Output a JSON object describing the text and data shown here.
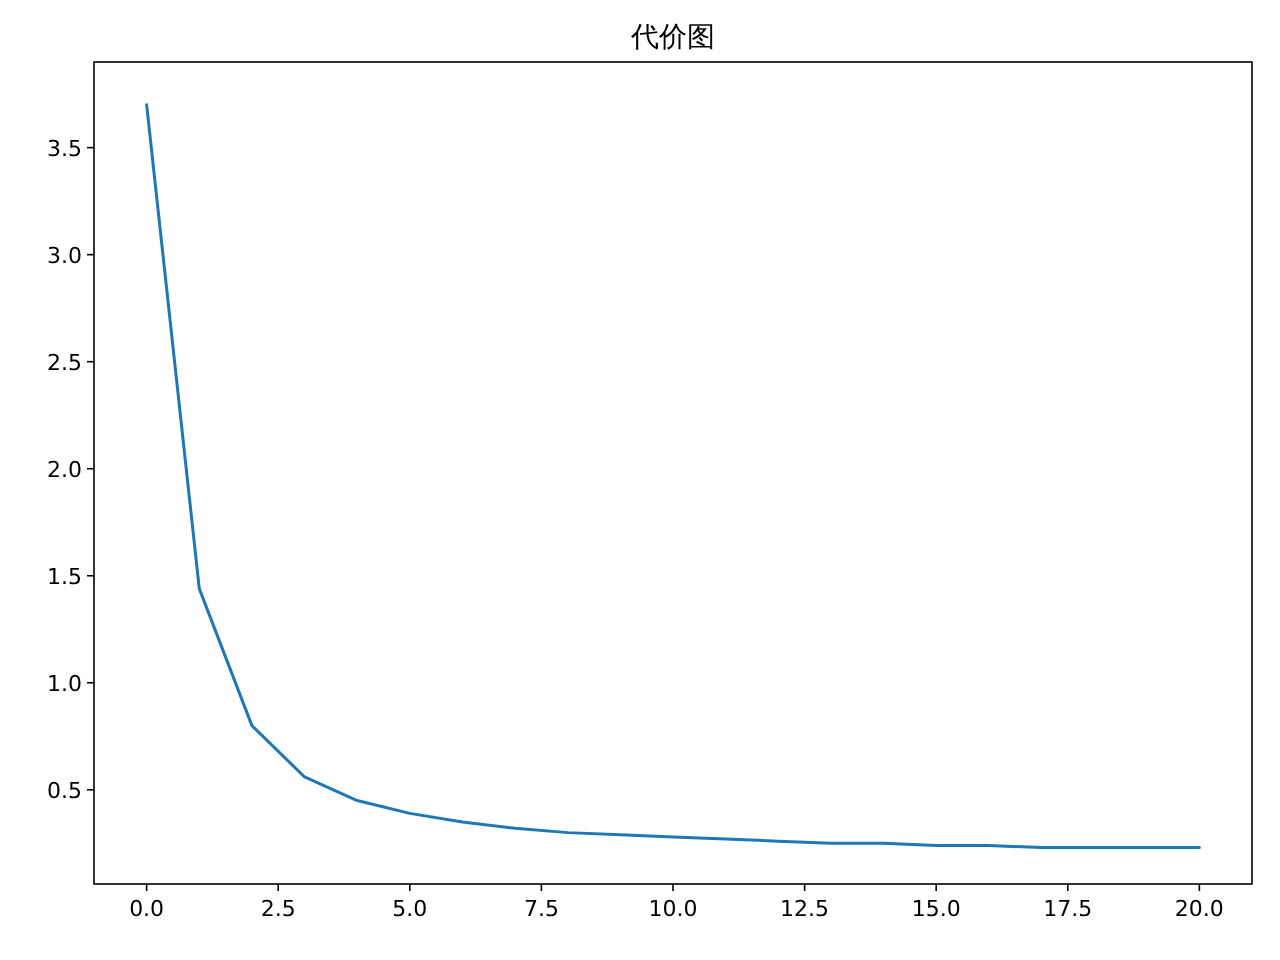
{
  "chart_data": {
    "type": "line",
    "title": "代价图",
    "x": [
      0,
      1,
      2,
      3,
      4,
      5,
      6,
      7,
      8,
      9,
      10,
      11,
      12,
      13,
      14,
      15,
      16,
      17,
      18,
      19,
      20
    ],
    "series": [
      {
        "color": "#1f77b4",
        "values": [
          3.7,
          1.44,
          0.8,
          0.56,
          0.45,
          0.39,
          0.35,
          0.32,
          0.3,
          0.29,
          0.28,
          0.27,
          0.26,
          0.25,
          0.25,
          0.24,
          0.24,
          0.23,
          0.23,
          0.23,
          0.23
        ]
      }
    ],
    "xlim": [
      -1,
      21
    ],
    "xticks": [
      {
        "value": 0,
        "label": "0.0"
      },
      {
        "value": 2.5,
        "label": "2.5"
      },
      {
        "value": 5,
        "label": "5.0"
      },
      {
        "value": 7.5,
        "label": "7.5"
      },
      {
        "value": 10,
        "label": "10.0"
      },
      {
        "value": 12.5,
        "label": "12.5"
      },
      {
        "value": 15,
        "label": "15.0"
      },
      {
        "value": 17.5,
        "label": "17.5"
      },
      {
        "value": 20,
        "label": "20.0"
      }
    ],
    "ylim": [
      0.06,
      3.9
    ],
    "yticks": [
      0.5,
      {
        "value": 1,
        "label": "1.0"
      },
      1.5,
      {
        "value": 2,
        "label": "2.0"
      },
      2.5,
      {
        "value": 3,
        "label": "3.0"
      },
      3.5
    ],
    "grid": false,
    "marker": "none",
    "line_style": "solid"
  }
}
